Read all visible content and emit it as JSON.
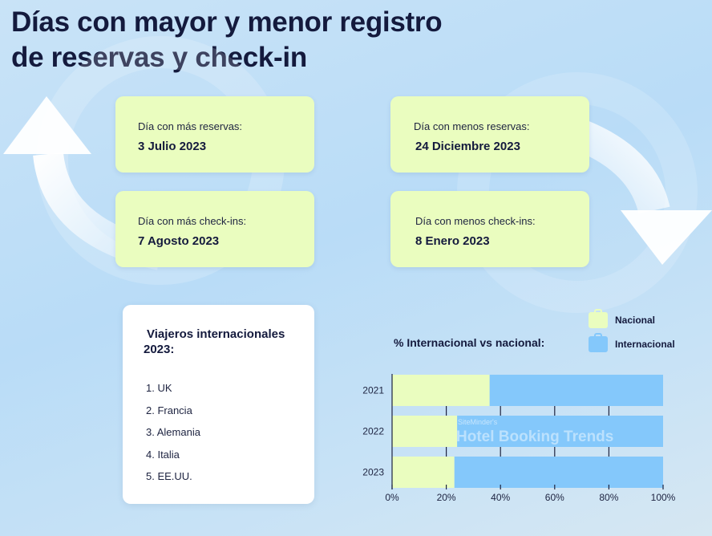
{
  "title_lines": [
    "Días con mayor y menor registro",
    "de reservas y check-in"
  ],
  "cards": {
    "most_bookings": {
      "label": "Día con más reservas:",
      "value": "3 Julio 2023"
    },
    "least_bookings": {
      "label": "Día con menos reservas:",
      "value": "24 Diciembre 2023"
    },
    "most_checkins": {
      "label": "Día con más check-ins:",
      "value": "7 Agosto 2023"
    },
    "least_checkins": {
      "label": "Día con menos check-ins:",
      "value": "8 Enero 2023"
    }
  },
  "travelers": {
    "title_lines": [
      "Viajeros internacionales",
      "2023:"
    ],
    "items": [
      "1. UK",
      "2. Francia",
      "3. Alemania",
      "4. Italia",
      "5. EE.UU."
    ]
  },
  "legend": {
    "nacional": "Nacional",
    "internacional": "Internacional"
  },
  "watermark": {
    "small": "SiteMinder's",
    "big": "Hotel Booking Trends"
  },
  "colors": {
    "nacional": "#eafdbf",
    "internacional": "#84c8fb",
    "text": "#141a3d",
    "card": "#eafdbf"
  },
  "chart_data": {
    "type": "bar",
    "orientation": "horizontal",
    "stacked": true,
    "title": "% Internacional vs nacional:",
    "categories": [
      "2021",
      "2022",
      "2023"
    ],
    "series": [
      {
        "name": "Nacional",
        "values": [
          36,
          24,
          23
        ]
      },
      {
        "name": "Internacional",
        "values": [
          64,
          76,
          77
        ]
      }
    ],
    "xlim": [
      0,
      100
    ],
    "xticks": [
      "0%",
      "20%",
      "40%",
      "60%",
      "80%",
      "100%"
    ],
    "grid": true,
    "legend_position": "top-right"
  }
}
